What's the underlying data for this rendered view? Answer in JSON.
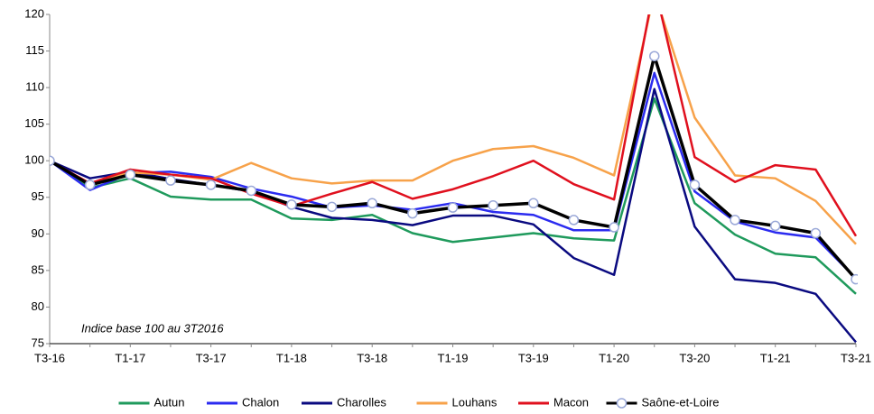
{
  "chart_data": {
    "type": "line",
    "annotation": "Indice base 100 au 3T2016",
    "categories": [
      "T3-16",
      null,
      "T1-17",
      null,
      "T3-17",
      null,
      "T1-18",
      null,
      "T3-18",
      null,
      "T1-19",
      null,
      "T3-19",
      null,
      "T1-20",
      null,
      "T3-20",
      null,
      "T1-21",
      null,
      "T3-21"
    ],
    "ylim": [
      75,
      120
    ],
    "yticks": [
      75,
      80,
      85,
      90,
      95,
      100,
      105,
      110,
      115,
      120
    ],
    "grid": false,
    "legend": "bottom",
    "series": [
      {
        "name": "Autun",
        "color": "#1f9a5c",
        "values": [
          100,
          96.3,
          97.6,
          95.1,
          94.7,
          94.7,
          92.1,
          91.9,
          92.6,
          90.1,
          88.9,
          89.5,
          90.1,
          89.4,
          89.1,
          108.5,
          94.2,
          89.9,
          87.3,
          86.8,
          81.8
        ]
      },
      {
        "name": "Chalon",
        "color": "#2b2bf0",
        "values": [
          100,
          96.0,
          98.3,
          98.5,
          97.8,
          96.2,
          95.1,
          93.6,
          93.9,
          93.3,
          94.2,
          93.0,
          92.6,
          90.5,
          90.5,
          112.0,
          95.8,
          91.7,
          90.2,
          89.5,
          83.9
        ]
      },
      {
        "name": "Charolles",
        "color": "#0a0a80",
        "values": [
          100,
          97.6,
          98.5,
          97.5,
          96.7,
          95.8,
          93.7,
          92.2,
          91.9,
          91.2,
          92.5,
          92.5,
          91.3,
          86.7,
          84.4,
          109.8,
          91.0,
          83.8,
          83.3,
          81.8,
          75.2
        ]
      },
      {
        "name": "Louhans",
        "color": "#f7a24a",
        "values": [
          100,
          96.8,
          98.4,
          98.1,
          97.4,
          99.7,
          97.6,
          96.9,
          97.3,
          97.3,
          100,
          101.6,
          102,
          100.4,
          98,
          123,
          105.9,
          98,
          97.6,
          94.5,
          88.6
        ]
      },
      {
        "name": "Macon",
        "color": "#e0101e",
        "values": [
          100,
          96.9,
          98.8,
          98.1,
          97.6,
          95.5,
          93.8,
          95.5,
          97.1,
          94.8,
          96.1,
          97.9,
          100,
          96.8,
          94.7,
          124,
          100.5,
          97.1,
          99.4,
          98.8,
          89.7
        ]
      },
      {
        "name": "Saône-et-Loire",
        "color": "#000000",
        "markers": true,
        "values": [
          100,
          96.7,
          98.1,
          97.3,
          96.7,
          95.9,
          94,
          93.7,
          94.2,
          92.8,
          93.6,
          93.9,
          94.2,
          91.9,
          90.9,
          114.3,
          96.7,
          91.9,
          91.1,
          90.1,
          83.8
        ]
      }
    ]
  }
}
